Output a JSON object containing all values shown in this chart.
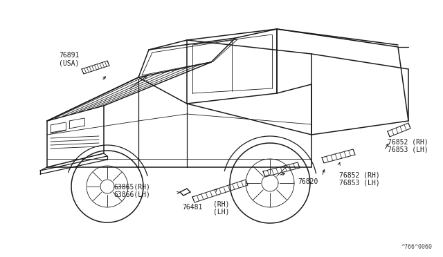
{
  "bg_color": "#ffffff",
  "line_color": "#1a1a1a",
  "text_color": "#1a1a1a",
  "figure_width": 6.4,
  "figure_height": 3.72,
  "dpi": 100,
  "watermark": "^766^0060",
  "label_76891": "76891\n(USA)",
  "label_63865": "63865(RH)\n63866(LH)",
  "label_76481": "76481",
  "label_76481b": "(RH)\n(LH)",
  "label_76820": "76820",
  "label_76852a": "76852 (RH)\n76853 (LH)",
  "label_76852b": "76852 (RH)\n76853 (LH)"
}
